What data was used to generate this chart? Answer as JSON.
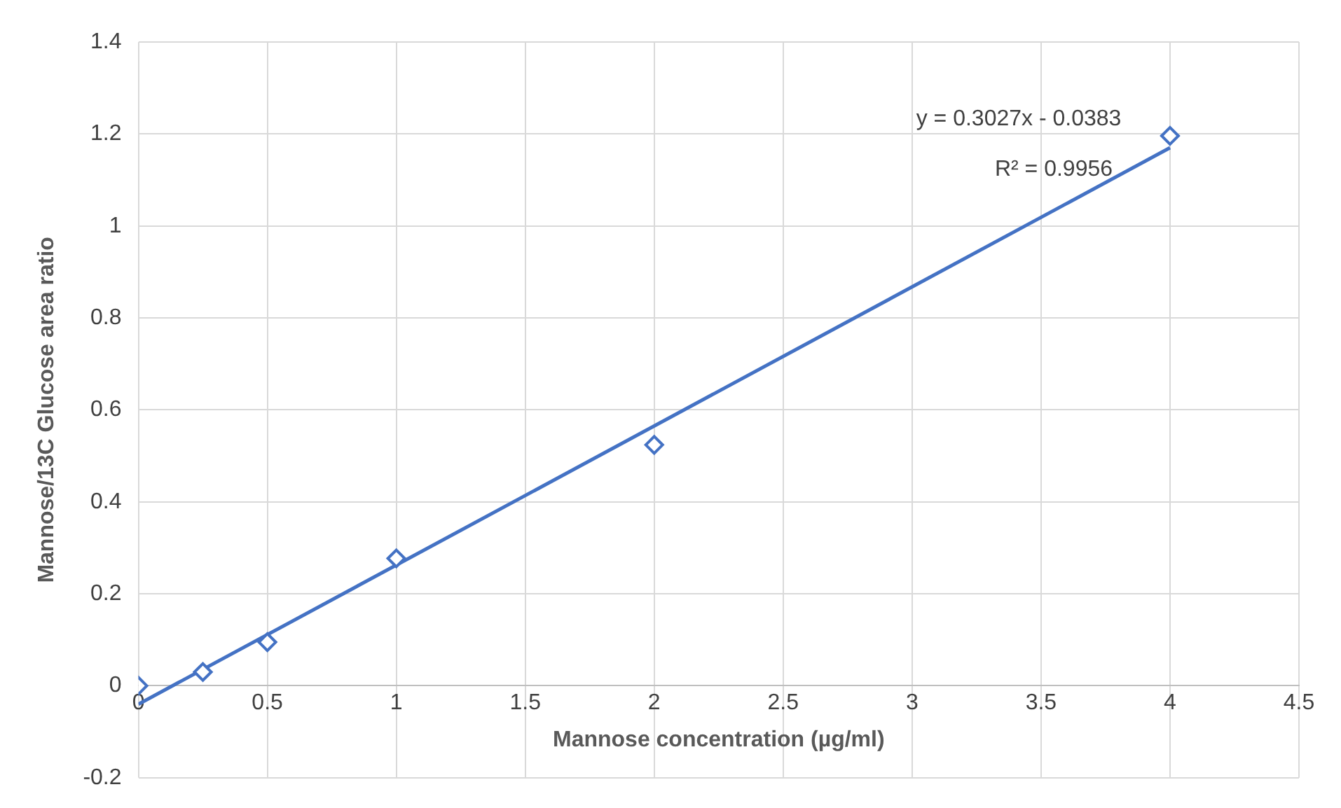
{
  "chart_data": {
    "type": "scatter",
    "xlabel": "Mannose concentration (µg/ml)",
    "ylabel": "Mannose/13C Glucose area ratio",
    "xlim": [
      0,
      4.5
    ],
    "xticks": [
      0,
      0.5,
      1,
      1.5,
      2,
      2.5,
      3,
      3.5,
      4,
      4.5
    ],
    "ylim": [
      -0.2,
      1.4
    ],
    "yticks": [
      -0.2,
      0,
      0.2,
      0.4,
      0.6,
      0.8,
      1,
      1.2,
      1.4
    ],
    "grid": true,
    "series": [
      {
        "type": "scatter",
        "marker": "diamond",
        "color": "#4472c4",
        "x": [
          0,
          0.25,
          0.5,
          1,
          2,
          4
        ],
        "values": [
          0,
          0.03,
          0.095,
          0.277,
          0.524,
          1.196
        ]
      },
      {
        "type": "line",
        "marker": "none",
        "color": "#4472c4",
        "x": [
          0,
          4
        ],
        "values": [
          -0.04,
          1.17
        ]
      }
    ],
    "annotations": [
      "y = 0.3027x - 0.0383",
      "R² = 0.9956"
    ]
  }
}
